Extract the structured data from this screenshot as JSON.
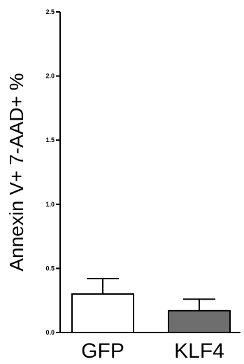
{
  "chart_data": {
    "type": "bar",
    "title": "",
    "xlabel": "",
    "ylabel": "Annexin V+ 7-AAD+ %",
    "categories": [
      "GFP",
      "KLF4"
    ],
    "values": [
      0.3,
      0.17
    ],
    "error_upper": [
      0.42,
      0.26
    ],
    "ylim": [
      0.0,
      2.5
    ],
    "yticks": [
      "0.0",
      "0.5",
      "1.0",
      "1.5",
      "2.0",
      "2.5"
    ],
    "grid": false,
    "bar_colors": [
      "#ffffff",
      "#6e6e6e"
    ],
    "bar_edge_color": "#000000"
  }
}
